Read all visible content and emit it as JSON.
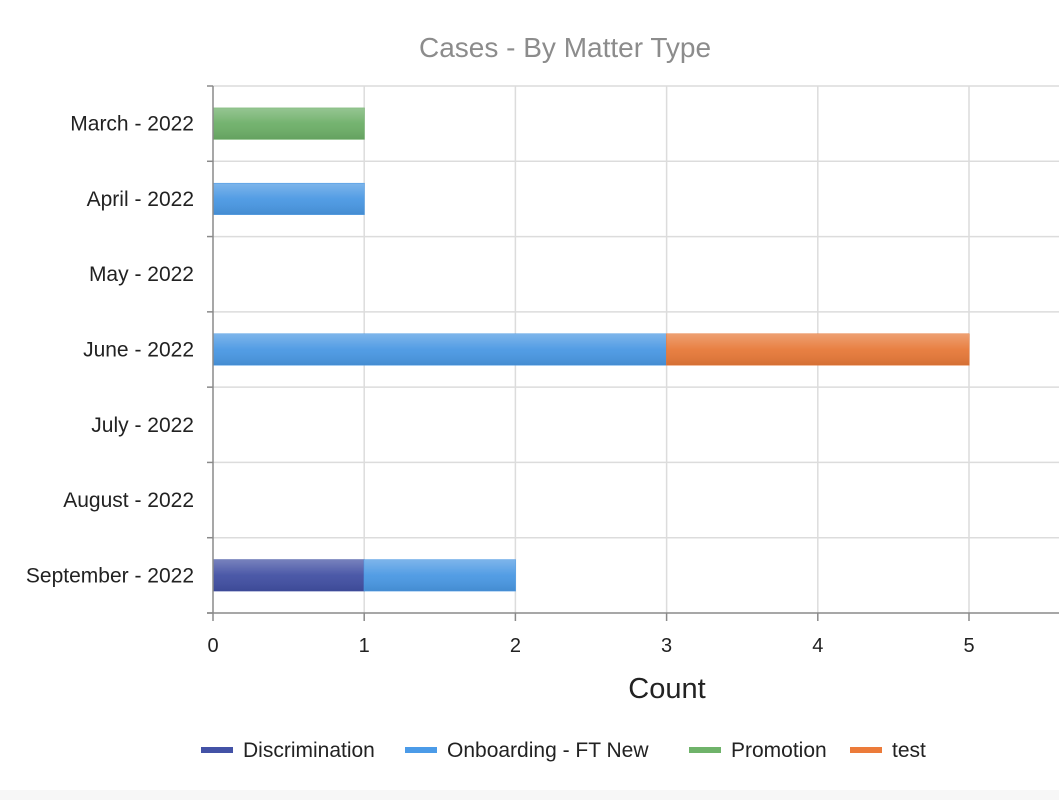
{
  "chart_data": {
    "type": "bar",
    "orientation": "horizontal",
    "stacked": true,
    "title": "Cases - By Matter Type",
    "xlabel": "Count",
    "ylabel": "",
    "xlim": [
      0,
      5.6
    ],
    "xticks": [
      "0",
      "1",
      "2",
      "3",
      "4",
      "5"
    ],
    "grid": true,
    "legend_position": "bottom",
    "categories": [
      "March - 2022",
      "April - 2022",
      "May - 2022",
      "June - 2022",
      "July - 2022",
      "August - 2022",
      "September - 2022"
    ],
    "series": [
      {
        "name": "Discrimination",
        "color": "#4352a6",
        "values": [
          0,
          0,
          0,
          0,
          0,
          0,
          1
        ]
      },
      {
        "name": "Onboarding - FT New",
        "color": "#4b9be8",
        "values": [
          0,
          1,
          0,
          3,
          0,
          0,
          1
        ]
      },
      {
        "name": "Promotion",
        "color": "#6fb36a",
        "values": [
          1,
          0,
          0,
          0,
          0,
          0,
          0
        ]
      },
      {
        "name": "test",
        "color": "#ec7b3a",
        "values": [
          0,
          0,
          0,
          2,
          0,
          0,
          0
        ]
      }
    ]
  }
}
